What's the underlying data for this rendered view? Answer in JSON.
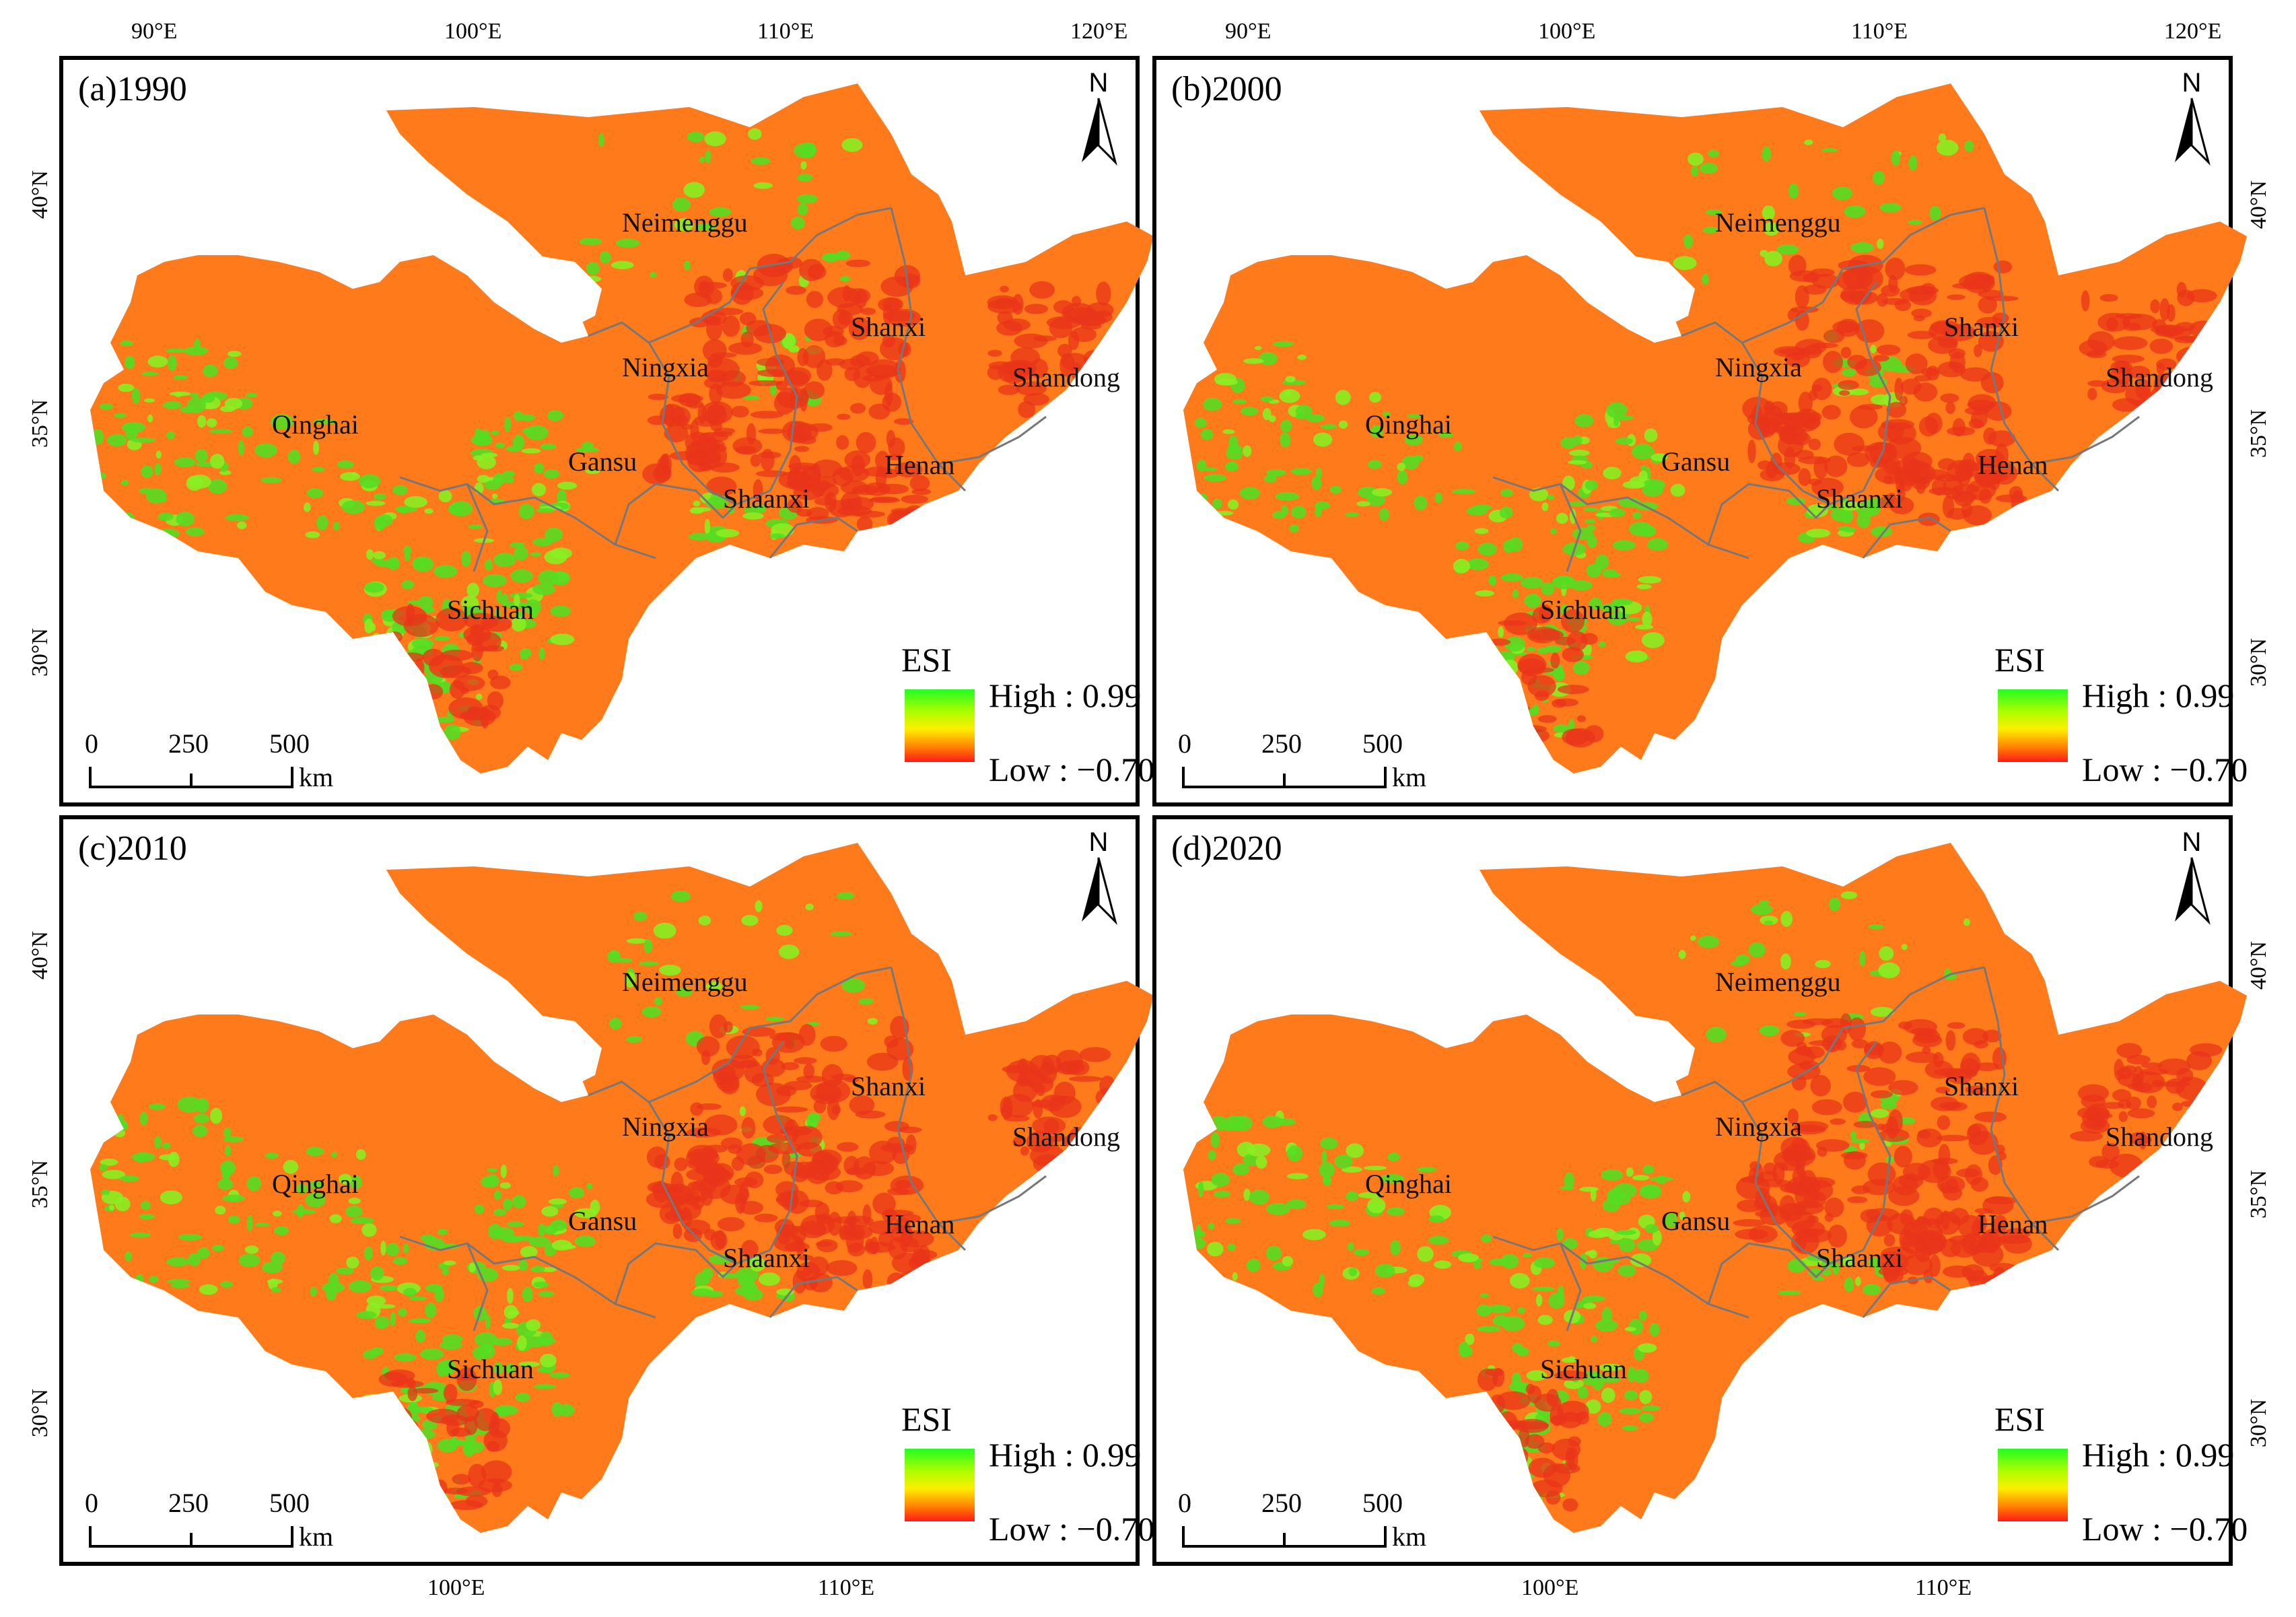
{
  "figure": {
    "top_lon_labels": [
      "90°E",
      "100°E",
      "110°E",
      "120°E"
    ],
    "bottom_lon_labels": [
      "100°E",
      "110°E"
    ],
    "lat_labels": [
      "40°N",
      "35°N",
      "30°N"
    ]
  },
  "panels": [
    {
      "title": "(a)1990",
      "esi_green_patches": 1.0
    },
    {
      "title": "(b)2000",
      "esi_green_patches": 0.9
    },
    {
      "title": "(c)2010",
      "esi_green_patches": 1.0
    },
    {
      "title": "(d)2020",
      "esi_green_patches": 0.85
    }
  ],
  "provinces": [
    "Neimenggu",
    "Ningxia",
    "Shanxi",
    "Shandong",
    "Qinghai",
    "Gansu",
    "Henan",
    "Shaanxi",
    "Sichuan"
  ],
  "legend": {
    "title": "ESI",
    "high": "High : 0.99",
    "low": "Low : −0.70",
    "colors": {
      "high": "#22ff22",
      "mid": "#ffee00",
      "low": "#ff1a1a"
    }
  },
  "north_arrow": {
    "label": "N"
  },
  "scale_bar": {
    "ticks": [
      "0",
      "250",
      "500"
    ],
    "unit": "km"
  },
  "map_colors": {
    "base": "#ff7a1a",
    "green": "#55dd22",
    "red": "#e8341a",
    "boundary": "#777777"
  }
}
